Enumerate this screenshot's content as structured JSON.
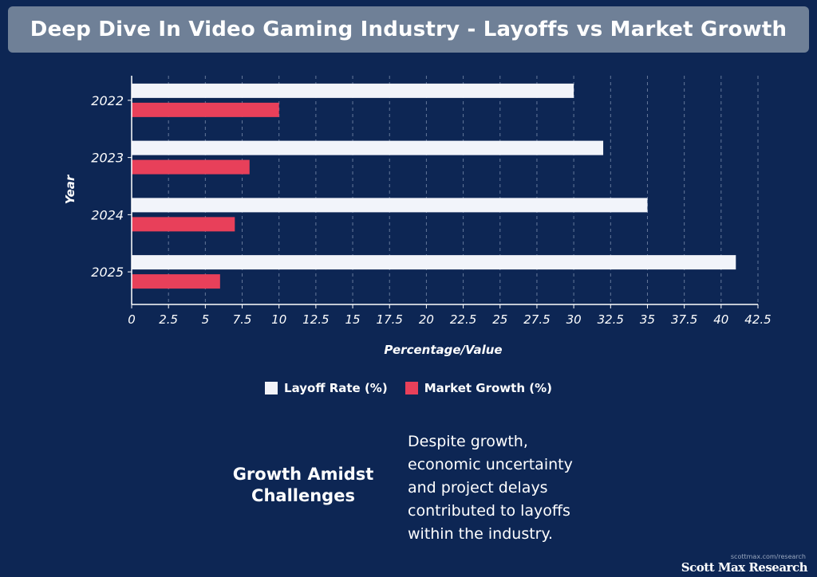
{
  "header": {
    "title": "Deep Dive In Video Gaming Industry - Layoffs vs Market Growth"
  },
  "colors": {
    "background": "#0d2654",
    "layoff": "#f2f4fa",
    "growth": "#e8405a",
    "title_bar": "#6f8097"
  },
  "chart_data": {
    "type": "bar",
    "orientation": "horizontal",
    "categories": [
      "2022",
      "2023",
      "2024",
      "2025"
    ],
    "series": [
      {
        "name": "Layoff Rate (%)",
        "values": [
          30,
          32,
          35,
          41
        ]
      },
      {
        "name": "Market Growth (%)",
        "values": [
          10,
          8,
          7,
          6
        ]
      }
    ],
    "xlabel": "Percentage/Value",
    "ylabel": "Year",
    "xlim": [
      0,
      42.5
    ],
    "xticks": [
      "0",
      "2.5",
      "5",
      "7.5",
      "10",
      "12.5",
      "15",
      "17.5",
      "20",
      "22.5",
      "25",
      "27.5",
      "30",
      "32.5",
      "35",
      "37.5",
      "40",
      "42.5"
    ],
    "grid": "vertical dashed",
    "legend_position": "bottom"
  },
  "callout": {
    "heading_line1": "Growth Amidst",
    "heading_line2": "Challenges",
    "body": "Despite growth, economic uncertainty and project delays contributed to layoffs within the industry."
  },
  "brand": {
    "url": "scottmax.com/research",
    "name": "Scott Max Research"
  }
}
